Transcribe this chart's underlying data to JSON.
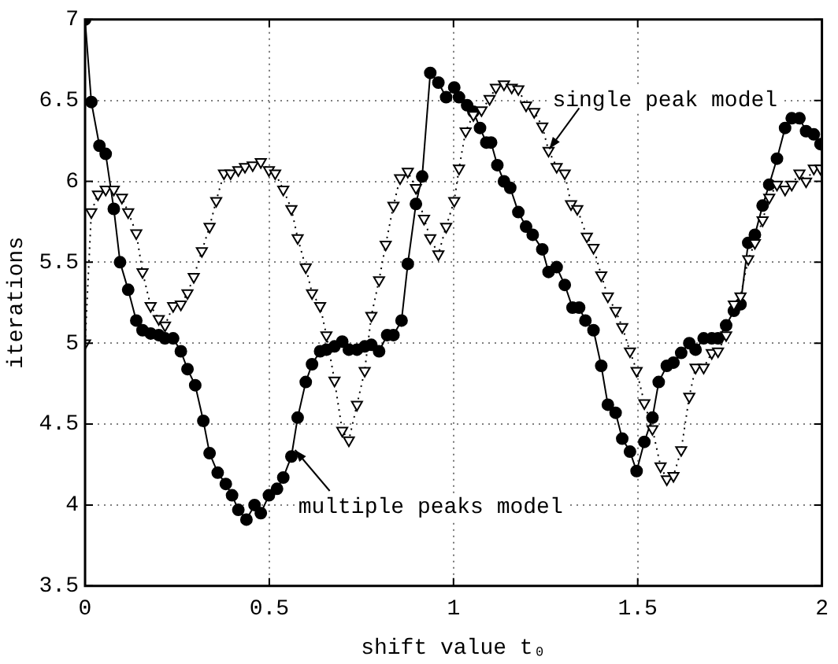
{
  "chart_data": {
    "type": "line",
    "xlabel": "shift value t₀",
    "ylabel": "iterations",
    "xlim": [
      0,
      2
    ],
    "xticks": [
      0,
      0.5,
      1,
      1.5,
      2
    ],
    "ylim": [
      3.5,
      7
    ],
    "yticks": [
      3.5,
      4,
      4.5,
      5,
      5.5,
      6,
      6.5,
      7
    ],
    "grid": true,
    "legend": false,
    "annotations": [
      {
        "text": "single peak model",
        "x": 1.26,
        "y": 6.2
      },
      {
        "text": "multiple peaks model",
        "x": 0.57,
        "y": 4.34
      }
    ],
    "series": [
      {
        "color": "#000000",
        "marker": "circle",
        "line_style": "solid",
        "x": [
          0,
          0.017,
          0.039,
          0.056,
          0.078,
          0.095,
          0.117,
          0.139,
          0.156,
          0.178,
          0.2,
          0.217,
          0.239,
          0.26,
          0.278,
          0.299,
          0.321,
          0.338,
          0.36,
          0.382,
          0.399,
          0.416,
          0.438,
          0.46,
          0.477,
          0.499,
          0.521,
          0.538,
          0.56,
          0.577,
          0.599,
          0.616,
          0.638,
          0.655,
          0.677,
          0.698,
          0.716,
          0.738,
          0.759,
          0.777,
          0.798,
          0.82,
          0.837,
          0.859,
          0.876,
          0.898,
          0.915,
          0.937,
          0.959,
          0.98,
          1.002,
          1.015,
          1.037,
          1.054,
          1.072,
          1.089,
          1.102,
          1.119,
          1.137,
          1.154,
          1.176,
          1.197,
          1.215,
          1.241,
          1.258,
          1.28,
          1.302,
          1.323,
          1.341,
          1.358,
          1.38,
          1.401,
          1.419,
          1.44,
          1.458,
          1.479,
          1.497,
          1.518,
          1.54,
          1.557,
          1.579,
          1.597,
          1.618,
          1.64,
          1.657,
          1.679,
          1.701,
          1.718,
          1.74,
          1.761,
          1.779,
          1.8,
          1.818,
          1.839,
          1.857,
          1.878,
          1.9,
          1.918,
          1.939,
          1.957,
          1.978,
          1.996
        ],
        "values": [
          7.0,
          6.49,
          6.22,
          6.17,
          5.83,
          5.5,
          5.33,
          5.14,
          5.08,
          5.06,
          5.05,
          5.03,
          5.03,
          4.95,
          4.84,
          4.74,
          4.52,
          4.32,
          4.2,
          4.13,
          4.06,
          3.97,
          3.91,
          4.0,
          3.95,
          4.06,
          4.1,
          4.17,
          4.3,
          4.54,
          4.76,
          4.87,
          4.95,
          4.96,
          4.98,
          5.01,
          4.96,
          4.96,
          4.98,
          4.99,
          4.95,
          5.05,
          5.05,
          5.14,
          5.49,
          5.86,
          6.03,
          6.67,
          6.61,
          6.52,
          6.58,
          6.52,
          6.47,
          6.43,
          6.33,
          6.24,
          6.24,
          6.1,
          6.0,
          5.96,
          5.81,
          5.72,
          5.67,
          5.58,
          5.44,
          5.47,
          5.36,
          5.22,
          5.22,
          5.14,
          5.08,
          4.86,
          4.62,
          4.57,
          4.41,
          4.33,
          4.21,
          4.39,
          4.54,
          4.76,
          4.86,
          4.88,
          4.94,
          5.0,
          4.96,
          5.03,
          5.03,
          5.03,
          5.11,
          5.2,
          5.24,
          5.62,
          5.67,
          5.85,
          5.98,
          6.14,
          6.33,
          6.39,
          6.39,
          6.31,
          6.29,
          6.23
        ]
      },
      {
        "color": "#000000",
        "marker": "triangle",
        "line_style": "dotted",
        "x": [
          0,
          0.017,
          0.035,
          0.056,
          0.078,
          0.1,
          0.117,
          0.139,
          0.156,
          0.178,
          0.2,
          0.217,
          0.239,
          0.26,
          0.278,
          0.295,
          0.317,
          0.338,
          0.356,
          0.377,
          0.395,
          0.416,
          0.434,
          0.455,
          0.477,
          0.499,
          0.516,
          0.538,
          0.56,
          0.577,
          0.599,
          0.616,
          0.638,
          0.655,
          0.677,
          0.698,
          0.716,
          0.738,
          0.759,
          0.777,
          0.798,
          0.816,
          0.837,
          0.855,
          0.876,
          0.898,
          0.92,
          0.937,
          0.959,
          0.98,
          1.002,
          1.015,
          1.033,
          1.054,
          1.076,
          1.098,
          1.115,
          1.137,
          1.158,
          1.176,
          1.197,
          1.219,
          1.241,
          1.258,
          1.28,
          1.302,
          1.319,
          1.336,
          1.362,
          1.38,
          1.401,
          1.419,
          1.44,
          1.458,
          1.479,
          1.497,
          1.518,
          1.54,
          1.562,
          1.579,
          1.597,
          1.618,
          1.64,
          1.657,
          1.679,
          1.701,
          1.718,
          1.74,
          1.761,
          1.779,
          1.8,
          1.818,
          1.839,
          1.857,
          1.878,
          1.9,
          1.918,
          1.939,
          1.957,
          1.978,
          1.996
        ],
        "values": [
          5.0,
          5.81,
          5.92,
          5.95,
          5.95,
          5.9,
          5.81,
          5.68,
          5.44,
          5.23,
          5.15,
          5.11,
          5.23,
          5.24,
          5.31,
          5.41,
          5.57,
          5.72,
          5.88,
          6.05,
          6.05,
          6.07,
          6.09,
          6.1,
          6.12,
          6.07,
          6.05,
          5.95,
          5.83,
          5.65,
          5.47,
          5.31,
          5.23,
          5.05,
          4.77,
          4.46,
          4.4,
          4.62,
          4.83,
          5.17,
          5.39,
          5.61,
          5.85,
          6.02,
          6.06,
          5.96,
          5.77,
          5.65,
          5.55,
          5.72,
          5.88,
          6.08,
          6.31,
          6.41,
          6.44,
          6.51,
          6.58,
          6.6,
          6.58,
          6.57,
          6.47,
          6.43,
          6.34,
          6.19,
          6.09,
          6.05,
          5.86,
          5.83,
          5.66,
          5.59,
          5.42,
          5.29,
          5.2,
          5.1,
          4.95,
          4.83,
          4.63,
          4.47,
          4.24,
          4.16,
          4.18,
          4.34,
          4.67,
          4.85,
          4.85,
          4.94,
          4.95,
          5.05,
          5.24,
          5.29,
          5.52,
          5.62,
          5.76,
          5.9,
          5.98,
          5.95,
          5.98,
          6.05,
          6.0,
          6.08,
          6.08
        ]
      }
    ]
  }
}
